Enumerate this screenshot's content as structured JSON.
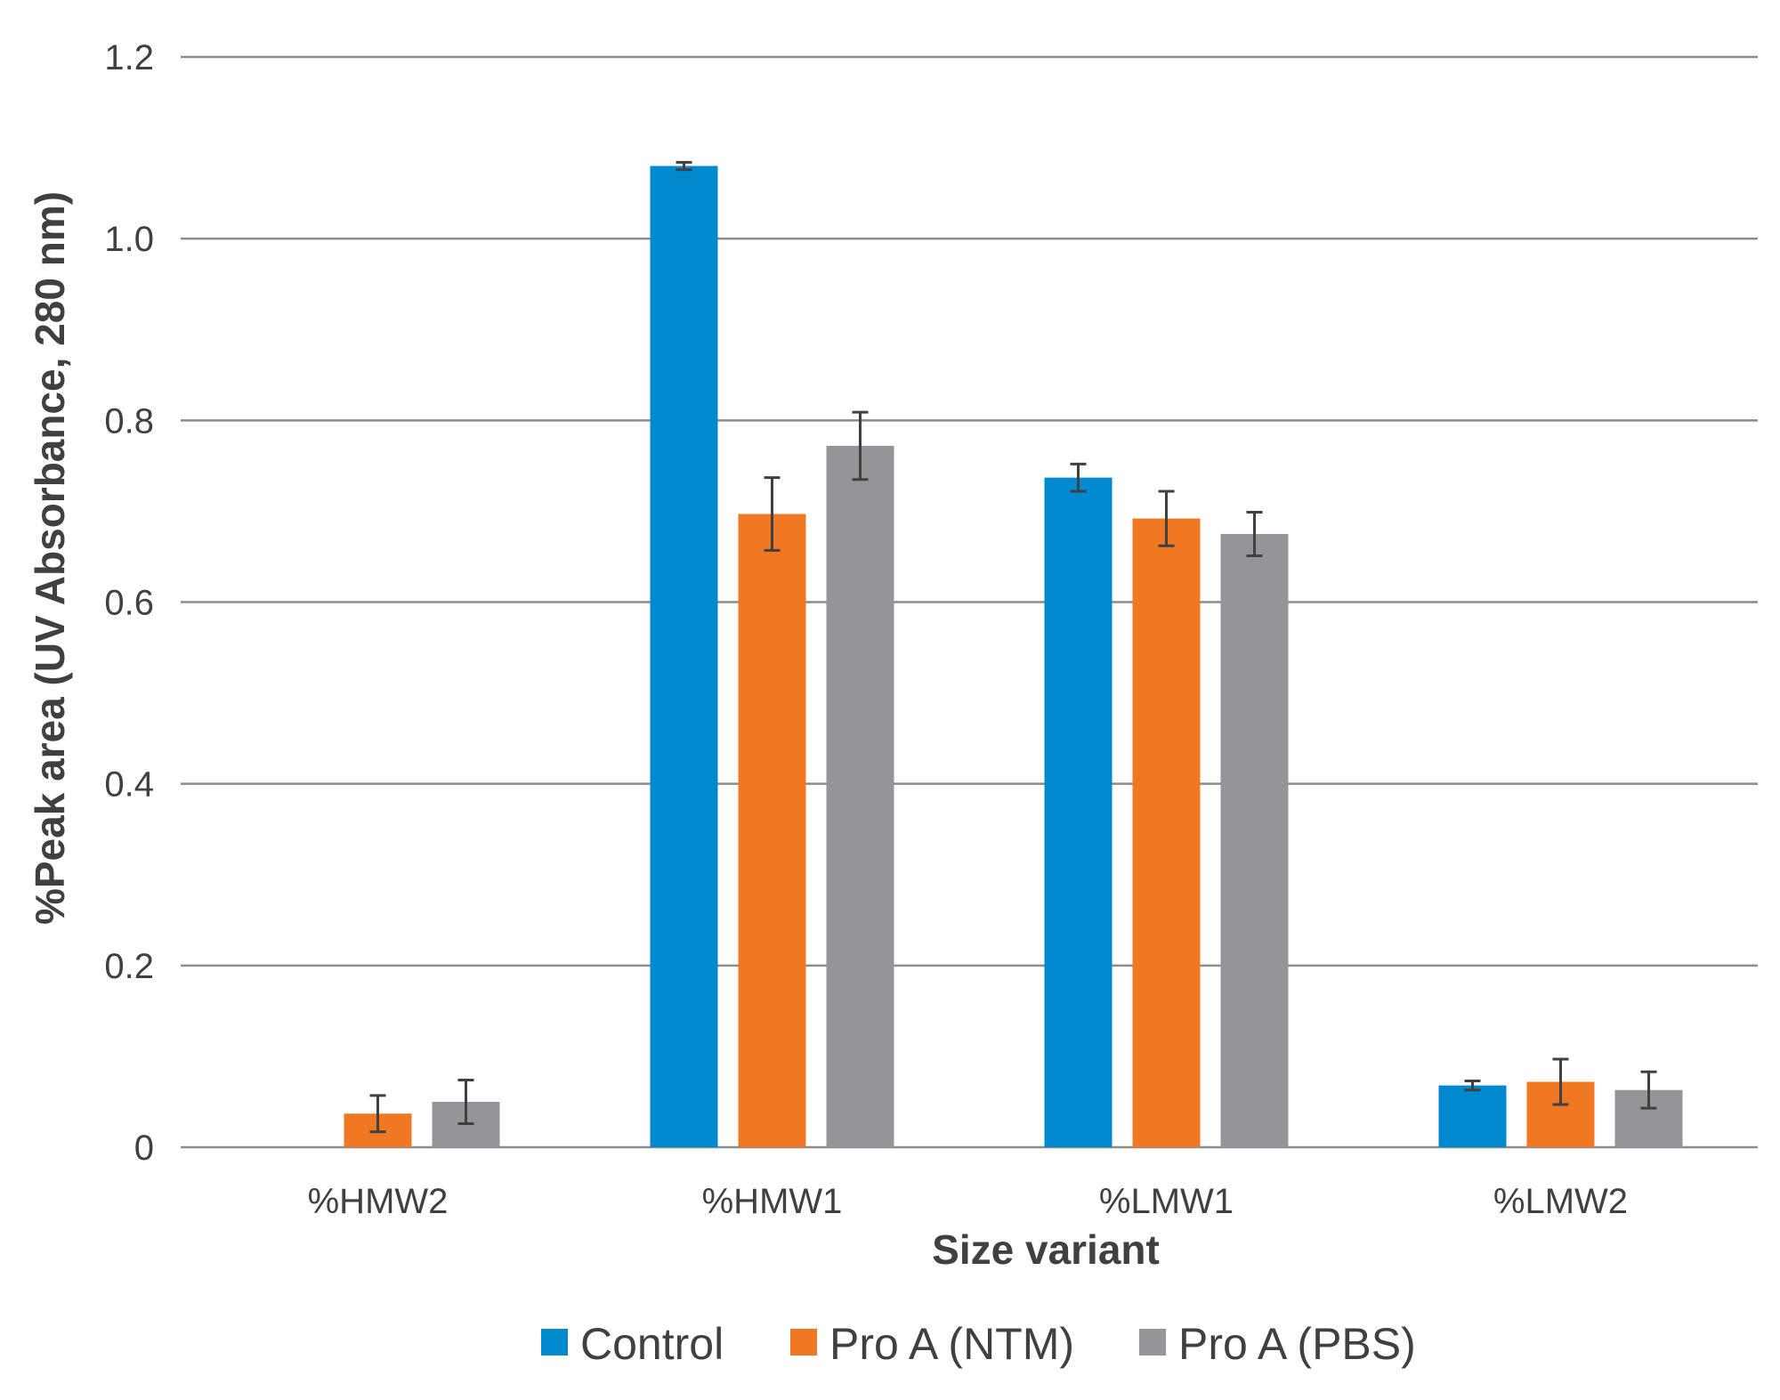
{
  "chart_data": {
    "type": "bar",
    "title": "",
    "xlabel": "Size variant",
    "ylabel": "%Peak area (UV Absorbance, 280 nm)",
    "ylim": [
      0,
      1.2
    ],
    "yticks": [
      {
        "value": 0,
        "label": "0"
      },
      {
        "value": 0.2,
        "label": "0.2"
      },
      {
        "value": 0.4,
        "label": "0.4"
      },
      {
        "value": 0.6,
        "label": "0.6"
      },
      {
        "value": 0.8,
        "label": "0.8"
      },
      {
        "value": 1.0,
        "label": "1.0"
      },
      {
        "value": 1.2,
        "label": "1.2"
      }
    ],
    "categories": [
      "%HMW2",
      "%HMW1",
      "%LMW1",
      "%LMW2"
    ],
    "series": [
      {
        "name": "Control",
        "color": "#0089CF",
        "values": [
          null,
          1.08,
          0.737,
          0.068
        ],
        "errors": [
          null,
          0.004,
          0.015,
          0.005
        ]
      },
      {
        "name": "Pro A (NTM)",
        "color": "#F07822",
        "values": [
          0.037,
          0.697,
          0.692,
          0.072
        ],
        "errors": [
          0.02,
          0.04,
          0.03,
          0.025
        ]
      },
      {
        "name": "Pro A (PBS)",
        "color": "#939598",
        "values": [
          0.05,
          0.772,
          0.675,
          0.063
        ],
        "errors": [
          0.024,
          0.037,
          0.024,
          0.02
        ]
      }
    ],
    "grid": true,
    "legend_position": "bottom"
  }
}
